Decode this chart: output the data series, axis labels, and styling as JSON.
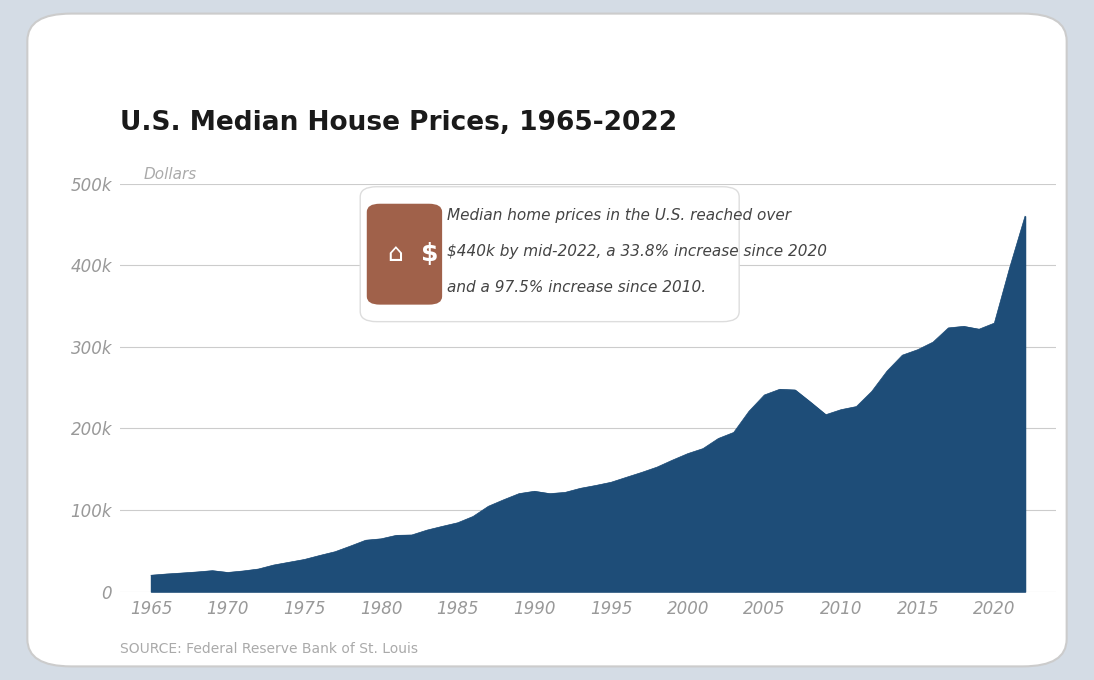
{
  "title": "U.S. Median House Prices, 1965-2022",
  "ylabel": "Dollars",
  "source": "SOURCE: Federal Reserve Bank of St. Louis",
  "annotation_line1": "Median home prices in the U.S. reached over",
  "annotation_line2": "$440k by mid-2022, a 33.8% increase since 2020",
  "annotation_line3": "and a 97.5% increase since 2010.",
  "ylim": [
    0,
    500000
  ],
  "yticks": [
    0,
    100000,
    200000,
    300000,
    400000,
    500000
  ],
  "ytick_labels": [
    "0",
    "100k",
    "200k",
    "300k",
    "400k",
    "500k"
  ],
  "area_color": "#1e4d78",
  "background_color": "#ffffff",
  "outer_background": "#d4dce5",
  "card_color": "#ffffff",
  "grid_color": "#cccccc",
  "icon_box_color": "#a0614a",
  "tick_color": "#999999",
  "source_color": "#aaaaaa",
  "title_color": "#1a1a1a",
  "ann_text_color": "#444444",
  "years": [
    1965,
    1966,
    1967,
    1968,
    1969,
    1970,
    1971,
    1972,
    1973,
    1974,
    1975,
    1976,
    1977,
    1978,
    1979,
    1980,
    1981,
    1982,
    1983,
    1984,
    1985,
    1986,
    1987,
    1988,
    1989,
    1990,
    1991,
    1992,
    1993,
    1994,
    1995,
    1996,
    1997,
    1998,
    1999,
    2000,
    2001,
    2002,
    2003,
    2004,
    2005,
    2006,
    2007,
    2008,
    2009,
    2010,
    2011,
    2012,
    2013,
    2014,
    2015,
    2016,
    2017,
    2018,
    2019,
    2020,
    2021,
    2022
  ],
  "prices": [
    20000,
    21500,
    22700,
    24000,
    25600,
    23400,
    25200,
    27600,
    32500,
    35900,
    39300,
    44200,
    48800,
    55700,
    62900,
    64600,
    68900,
    69300,
    75300,
    79900,
    84300,
    92000,
    104500,
    112500,
    120000,
    122900,
    120000,
    121500,
    126500,
    130000,
    133900,
    140000,
    146000,
    152500,
    161000,
    169000,
    175200,
    187600,
    195000,
    221000,
    240900,
    247900,
    247000,
    232100,
    216700,
    222900,
    226700,
    245200,
    270200,
    289700,
    296400,
    305700,
    323100,
    325000,
    321500,
    329000,
    397000,
    460000
  ]
}
